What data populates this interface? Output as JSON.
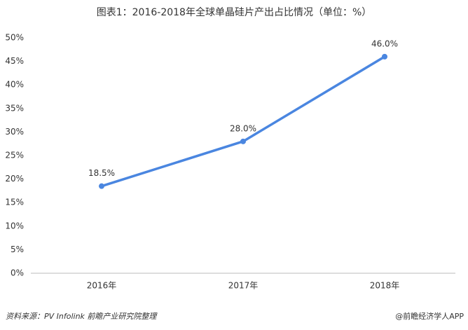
{
  "chart_data": {
    "type": "line",
    "title": "图表1：2016-2018年全球单晶硅片产出占比情况（单位：%）",
    "categories": [
      "2016年",
      "2017年",
      "2018年"
    ],
    "series": [
      {
        "name": "单晶硅片产出占比",
        "color": "#4a86e0",
        "values": [
          18.5,
          28,
          46
        ],
        "value_labels": [
          "18.5%",
          "28.0%",
          "46.0%"
        ]
      }
    ],
    "ylim": [
      0,
      50
    ],
    "yticks": [
      {
        "value": 0,
        "label": "0%"
      },
      {
        "value": 5,
        "label": "5%"
      },
      {
        "value": 10,
        "label": "10%"
      },
      {
        "value": 15,
        "label": "15%"
      },
      {
        "value": 20,
        "label": "20%"
      },
      {
        "value": 25,
        "label": "25%"
      },
      {
        "value": 30,
        "label": "30%"
      },
      {
        "value": 35,
        "label": "35%"
      },
      {
        "value": 40,
        "label": "40%"
      },
      {
        "value": 45,
        "label": "45%"
      },
      {
        "value": 50,
        "label": "50%"
      }
    ],
    "grid": false,
    "source": "资料来源：PV Infolink 前瞻产业研究院整理",
    "footer": "@前瞻经济学人APP"
  }
}
